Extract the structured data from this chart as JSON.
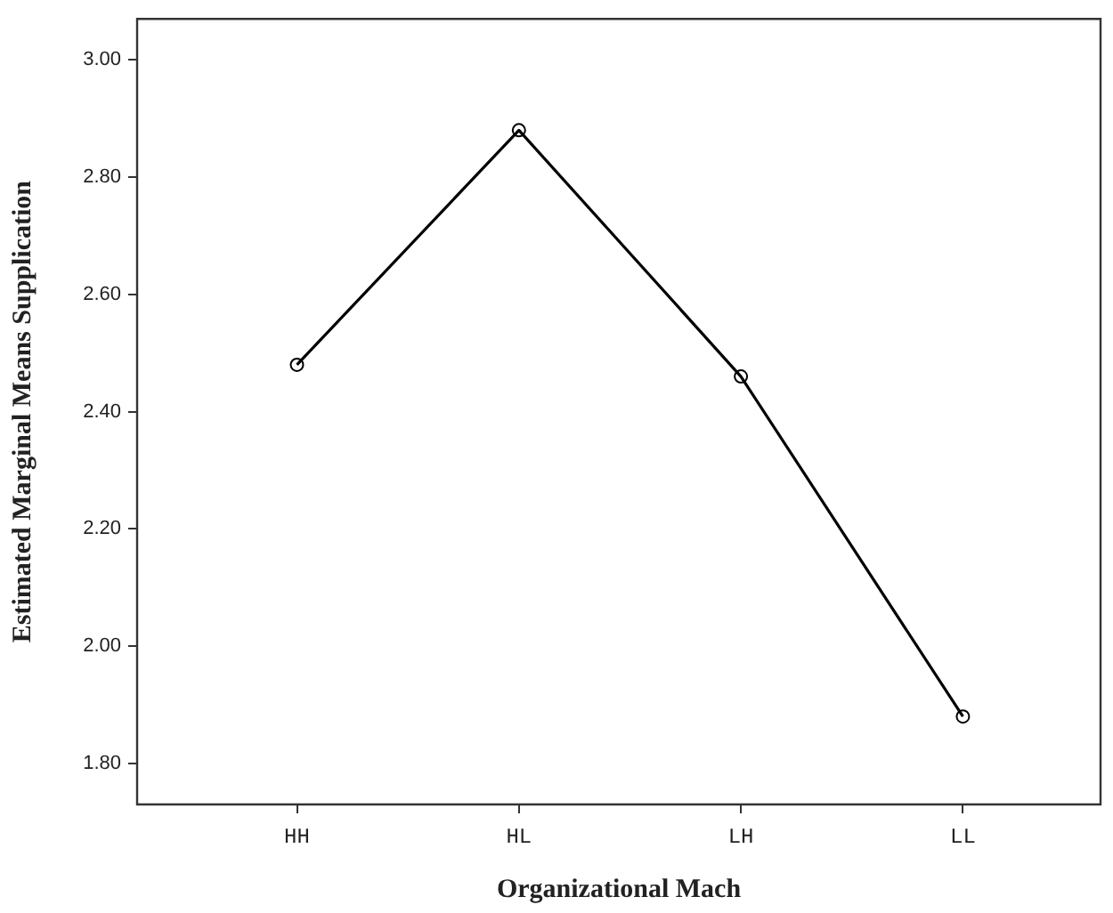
{
  "chart_data": {
    "type": "line",
    "xlabel": "Organizational Mach",
    "ylabel": "Estimated Marginal Means Supplication",
    "categories": [
      "HH",
      "HL",
      "LH",
      "LL"
    ],
    "series": [
      {
        "color": "#000000",
        "values": [
          2.48,
          2.88,
          2.46,
          1.88
        ]
      }
    ],
    "ylim": [
      1.73,
      3.07
    ],
    "yticks": [
      {
        "value": 1.8,
        "label": "1.80"
      },
      {
        "value": 2.0,
        "label": "2.00"
      },
      {
        "value": 2.2,
        "label": "2.20"
      },
      {
        "value": 2.4,
        "label": "2.40"
      },
      {
        "value": 2.6,
        "label": "2.60"
      },
      {
        "value": 2.8,
        "label": "2.80"
      },
      {
        "value": 3.0,
        "label": "3.00"
      }
    ],
    "grid": false,
    "legend": false,
    "marker": "circle",
    "line_style": "solid"
  }
}
